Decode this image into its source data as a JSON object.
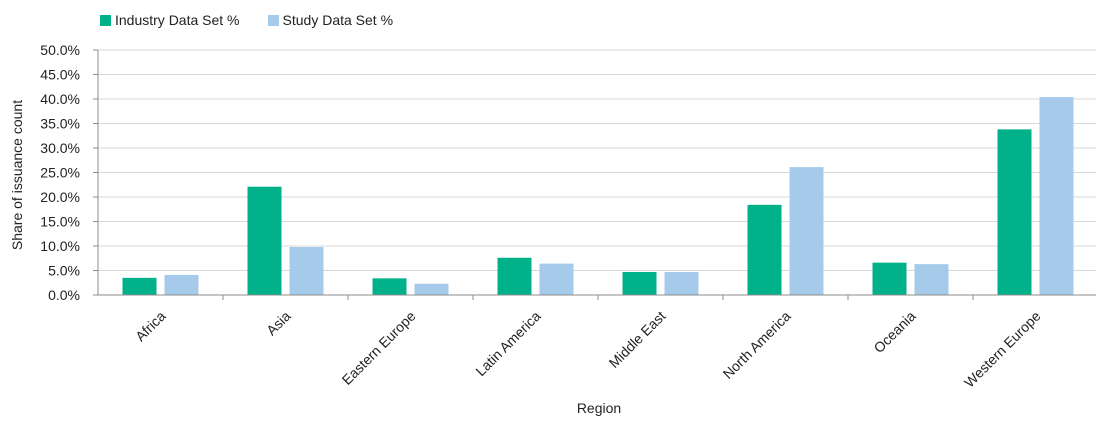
{
  "colors": {
    "industry": "#00b189",
    "study": "#a6cbea",
    "grid": "#d9d9d9",
    "axis": "#8c8c8c"
  },
  "chart_data": {
    "type": "bar",
    "title": "",
    "xlabel": "Region",
    "ylabel": "Share of issuance count",
    "categories": [
      "Africa",
      "Asia",
      "Eastern Europe",
      "Latin America",
      "Middle East",
      "North America",
      "Oceania",
      "Western Europe"
    ],
    "series": [
      {
        "name": "Industry Data Set %",
        "color": "#00b189",
        "values": [
          3.5,
          22.1,
          3.4,
          7.6,
          4.7,
          18.4,
          6.6,
          33.8
        ]
      },
      {
        "name": "Study Data Set %",
        "color": "#a6cbea",
        "values": [
          4.1,
          9.8,
          2.3,
          6.4,
          4.7,
          26.1,
          6.3,
          40.4
        ]
      }
    ],
    "ylim": [
      0,
      50
    ],
    "yticks": [
      "0.0%",
      "5.0%",
      "10.0%",
      "15.0%",
      "20.0%",
      "25.0%",
      "30.0%",
      "35.0%",
      "40.0%",
      "45.0%",
      "50.0%"
    ],
    "grid": true,
    "legend_position": "top-left"
  }
}
